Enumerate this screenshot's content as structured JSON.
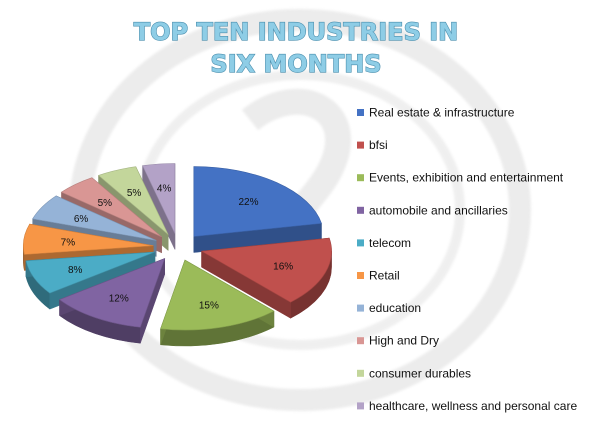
{
  "chart_data": {
    "type": "pie",
    "title": [
      "TOP TEN INDUSTRIES IN",
      "SIX MONTHS"
    ],
    "legend_position": "right",
    "categories": [
      "Real estate & infrastructure",
      "bfsi",
      "Events, exhibition and entertainment",
      "automobile and ancillaries",
      "telecom",
      "Retail",
      "education",
      "High and Dry",
      "consumer durables",
      "healthcare, wellness and personal care"
    ],
    "values": [
      22,
      16,
      15,
      12,
      8,
      7,
      6,
      5,
      5,
      4
    ],
    "labels": [
      "22%",
      "16%",
      "15%",
      "12%",
      "8%",
      "7%",
      "6%",
      "5%",
      "5%",
      "4%"
    ],
    "colors": [
      "#4472c4",
      "#c0504d",
      "#9bbb59",
      "#8064a2",
      "#4bacc6",
      "#f79646",
      "#95b3d7",
      "#d99694",
      "#c3d69b",
      "#b3a2c7"
    ]
  }
}
